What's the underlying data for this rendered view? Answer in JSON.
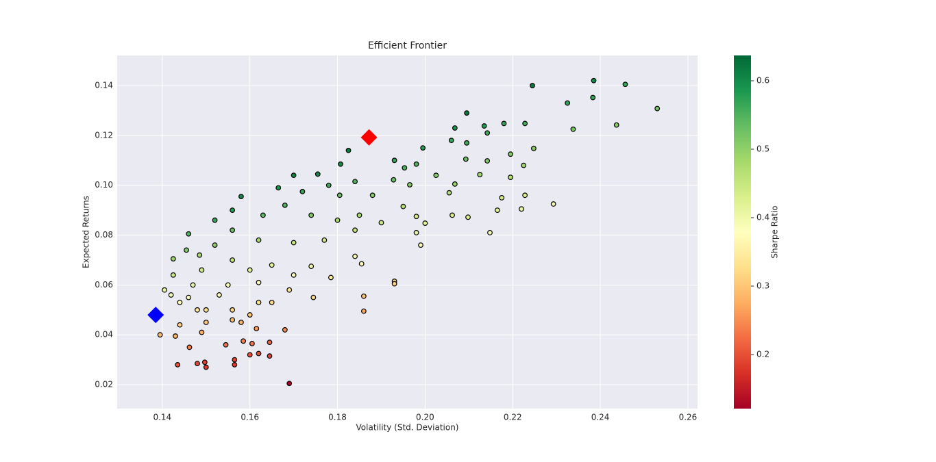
{
  "chart_data": {
    "type": "scatter",
    "title": "Efficient Frontier",
    "xlabel": "Volatility (Std. Deviation)",
    "ylabel": "Expected Returns",
    "xlim": [
      0.1297,
      0.2622
    ],
    "ylim": [
      0.0104,
      0.1521
    ],
    "xticks": [
      0.14,
      0.16,
      0.18,
      {
        "value": 0.2,
        "label": "0.20"
      },
      0.22,
      0.24,
      0.26
    ],
    "yticks": [
      0.02,
      0.04,
      0.06,
      0.08,
      {
        "value": 0.1,
        "label": "0.10"
      },
      0.12,
      0.14
    ],
    "grid": true,
    "background": "#eaeaf2",
    "edgecolor": "#000000",
    "cmap": "RdYlGn",
    "colorbar": {
      "label": "Sharpe Ratio",
      "clim": [
        0.121,
        0.637
      ],
      "ticks": [
        0.2,
        0.3,
        0.4,
        0.5,
        0.6
      ]
    },
    "series": [
      {
        "x": [
          0.2385,
          0.2457,
          0.2245,
          0.2383,
          0.2325,
          0.253,
          0.2095,
          0.2437,
          0.2338,
          0.2068,
          0.2135,
          0.218,
          0.2228,
          0.2142,
          0.206,
          0.2095,
          0.1825,
          0.1995,
          0.2248,
          0.2195,
          0.2093,
          0.2142,
          0.193,
          0.198,
          0.2225,
          0.1807,
          0.1953,
          0.2025,
          0.2125,
          0.2195,
          0.1928,
          0.1965,
          0.2068,
          0.2055,
          0.184,
          0.1755,
          0.17,
          0.1665,
          0.172,
          0.178,
          0.1805,
          0.188,
          0.2175,
          0.2228,
          0.2293,
          0.2165,
          0.222,
          0.2062,
          0.2098,
          0.2148,
          0.195,
          0.198,
          0.2,
          0.198,
          0.199,
          0.193,
          0.193,
          0.186,
          0.186,
          0.1855,
          0.184,
          0.1785,
          0.1745,
          0.174,
          0.169,
          0.168,
          0.165,
          0.1645,
          0.1645,
          0.162,
          0.16,
          0.1605,
          0.1615,
          0.1585,
          0.1565,
          0.1565,
          0.1545,
          0.15,
          0.1497,
          0.148,
          0.1435,
          0.1462,
          0.149,
          0.144,
          0.1395,
          0.143,
          0.15,
          0.156,
          0.158,
          0.156,
          0.15,
          0.146,
          0.142,
          0.1405,
          0.1425,
          0.1425,
          0.1455,
          0.1485,
          0.146,
          0.152,
          0.152,
          0.156,
          0.158,
          0.163,
          0.168,
          0.174,
          0.18,
          0.185,
          0.19,
          0.184,
          0.177,
          0.17,
          0.162,
          0.156,
          0.156,
          0.16,
          0.165,
          0.17,
          0.169,
          0.162,
          0.155,
          0.149,
          0.147,
          0.144,
          0.148,
          0.153,
          0.162,
          0.16
        ],
        "y": [
          0.142,
          0.1405,
          0.14,
          0.1352,
          0.133,
          0.1308,
          0.129,
          0.1242,
          0.1225,
          0.123,
          0.1238,
          0.1248,
          0.1248,
          0.121,
          0.118,
          0.117,
          0.114,
          0.115,
          0.1148,
          0.1125,
          0.1105,
          0.1098,
          0.11,
          0.1085,
          0.108,
          0.1085,
          0.107,
          0.104,
          0.1043,
          0.1032,
          0.1022,
          0.1002,
          0.1005,
          0.097,
          0.1015,
          0.1045,
          0.104,
          0.099,
          0.0975,
          0.1,
          0.096,
          0.096,
          0.095,
          0.096,
          0.0925,
          0.09,
          0.0905,
          0.088,
          0.0872,
          0.081,
          0.0915,
          0.0875,
          0.0848,
          0.081,
          0.076,
          0.0615,
          0.0605,
          0.0555,
          0.0495,
          0.0685,
          0.0715,
          0.063,
          0.055,
          0.0675,
          0.0205,
          0.042,
          0.053,
          0.0315,
          0.037,
          0.0325,
          0.032,
          0.0365,
          0.0425,
          0.0375,
          0.03,
          0.028,
          0.036,
          0.027,
          0.029,
          0.0285,
          0.028,
          0.035,
          0.041,
          0.044,
          0.04,
          0.0395,
          0.045,
          0.046,
          0.045,
          0.05,
          0.05,
          0.055,
          0.056,
          0.058,
          0.064,
          0.0705,
          0.074,
          0.072,
          0.0805,
          0.076,
          0.086,
          0.09,
          0.0955,
          0.088,
          0.092,
          0.088,
          0.086,
          0.088,
          0.085,
          0.082,
          0.078,
          0.077,
          0.078,
          0.082,
          0.07,
          0.066,
          0.068,
          0.064,
          0.058,
          0.061,
          0.06,
          0.066,
          0.06,
          0.053,
          0.05,
          0.056,
          0.053,
          0.048
        ],
        "c": [
          0.6,
          0.57,
          0.62,
          0.57,
          0.57,
          0.52,
          0.62,
          0.51,
          0.52,
          0.59,
          0.58,
          0.57,
          0.56,
          0.56,
          0.57,
          0.56,
          0.62,
          0.58,
          0.51,
          0.51,
          0.53,
          0.51,
          0.57,
          0.55,
          0.49,
          0.6,
          0.55,
          0.51,
          0.49,
          0.47,
          0.53,
          0.51,
          0.49,
          0.47,
          0.55,
          0.6,
          0.61,
          0.59,
          0.57,
          0.56,
          0.53,
          0.51,
          0.44,
          0.43,
          0.4,
          0.42,
          0.41,
          0.43,
          0.42,
          0.38,
          0.47,
          0.44,
          0.42,
          0.41,
          0.38,
          0.32,
          0.31,
          0.3,
          0.27,
          0.37,
          0.39,
          0.35,
          0.32,
          0.39,
          0.12,
          0.25,
          0.32,
          0.19,
          0.22,
          0.2,
          0.2,
          0.23,
          0.26,
          0.24,
          0.19,
          0.18,
          0.23,
          0.18,
          0.19,
          0.19,
          0.2,
          0.24,
          0.28,
          0.31,
          0.29,
          0.28,
          0.3,
          0.29,
          0.28,
          0.32,
          0.33,
          0.38,
          0.39,
          0.41,
          0.45,
          0.49,
          0.51,
          0.48,
          0.55,
          0.5,
          0.57,
          0.58,
          0.6,
          0.54,
          0.55,
          0.51,
          0.48,
          0.48,
          0.45,
          0.45,
          0.44,
          0.45,
          0.48,
          0.53,
          0.45,
          0.41,
          0.41,
          0.38,
          0.34,
          0.38,
          0.39,
          0.44,
          0.41,
          0.37,
          0.34,
          0.37,
          0.33,
          0.3
        ]
      }
    ],
    "highlights": [
      {
        "x": 0.1872,
        "y": 0.1192,
        "color": "#ff0000"
      },
      {
        "x": 0.1385,
        "y": 0.048,
        "color": "#0000ff"
      }
    ]
  }
}
